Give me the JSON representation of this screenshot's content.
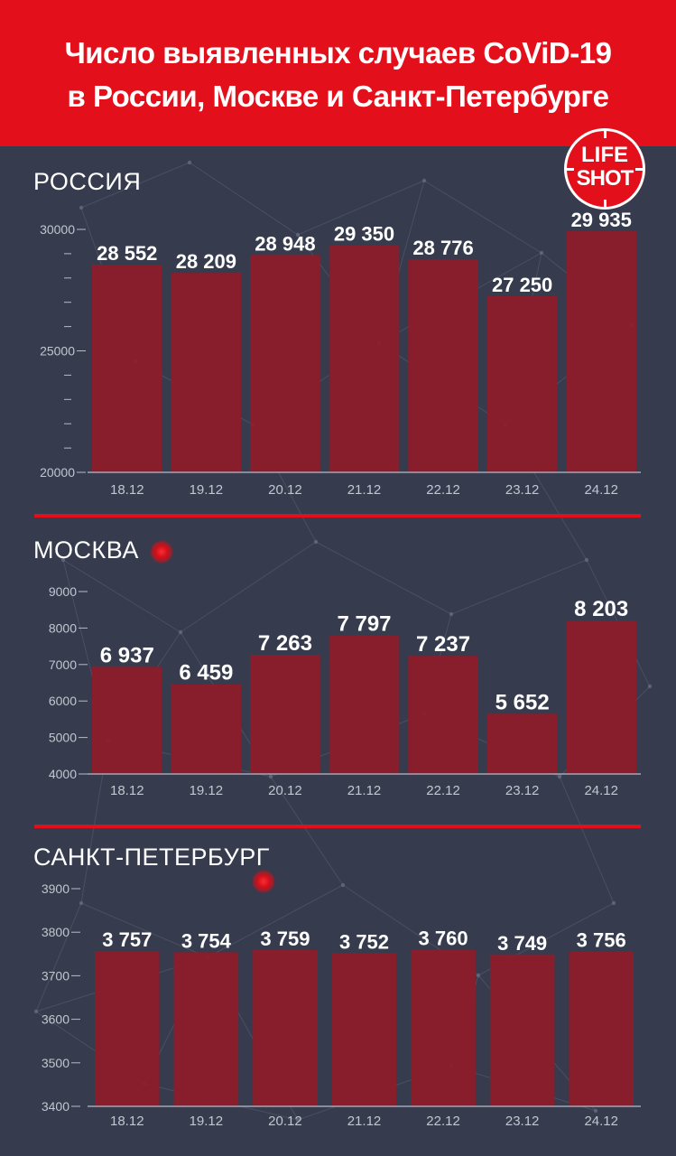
{
  "header": {
    "title_line1": "Число выявленных случаев CoViD-19",
    "title_line2": "в России, Москве и Санкт-Петербурге"
  },
  "logo": {
    "line1": "LIFE",
    "line2": "SHOT"
  },
  "colors": {
    "header_red": "#e3101b",
    "bar": "#8e1c2a",
    "background": "#363b4d",
    "axis": "#b8bcc8"
  },
  "chart_data": [
    {
      "type": "bar",
      "title": "РОССИЯ",
      "categories": [
        "18.12",
        "19.12",
        "20.12",
        "21.12",
        "22.12",
        "23.12",
        "24.12"
      ],
      "values": [
        28552,
        28209,
        28948,
        29350,
        28776,
        27250,
        29935
      ],
      "value_labels": [
        "28 552",
        "28 209",
        "28 948",
        "29 350",
        "28 776",
        "27 250",
        "29 935"
      ],
      "ylim": [
        20000,
        30000
      ],
      "yticks": [
        20000,
        25000,
        30000
      ],
      "ytick_labels": [
        "20000",
        "25000",
        "30000"
      ],
      "minor_ticks": 4
    },
    {
      "type": "bar",
      "title": "МОСКВА",
      "categories": [
        "18.12",
        "19.12",
        "20.12",
        "21.12",
        "22.12",
        "23.12",
        "24.12"
      ],
      "values": [
        6937,
        6459,
        7263,
        7797,
        7237,
        5652,
        8203
      ],
      "value_labels": [
        "6 937",
        "6 459",
        "7 263",
        "7 797",
        "7 237",
        "5 652",
        "8 203"
      ],
      "ylim": [
        4000,
        9000
      ],
      "yticks": [
        4000,
        5000,
        6000,
        7000,
        8000,
        9000
      ],
      "ytick_labels": [
        "4000",
        "5000",
        "6000",
        "7000",
        "8000",
        "9000"
      ],
      "minor_ticks": 0
    },
    {
      "type": "bar",
      "title": "САНКТ-ПЕТЕРБУРГ",
      "categories": [
        "18.12",
        "19.12",
        "20.12",
        "21.12",
        "22.12",
        "23.12",
        "24.12"
      ],
      "values": [
        3757,
        3754,
        3759,
        3752,
        3760,
        3749,
        3756
      ],
      "value_labels": [
        "3 757",
        "3 754",
        "3 759",
        "3 752",
        "3 760",
        "3 749",
        "3 756"
      ],
      "ylim": [
        3400,
        3900
      ],
      "yticks": [
        3400,
        3500,
        3600,
        3700,
        3800,
        3900
      ],
      "ytick_labels": [
        "3400",
        "3500",
        "3600",
        "3700",
        "3800",
        "3900"
      ],
      "minor_ticks": 0
    }
  ]
}
